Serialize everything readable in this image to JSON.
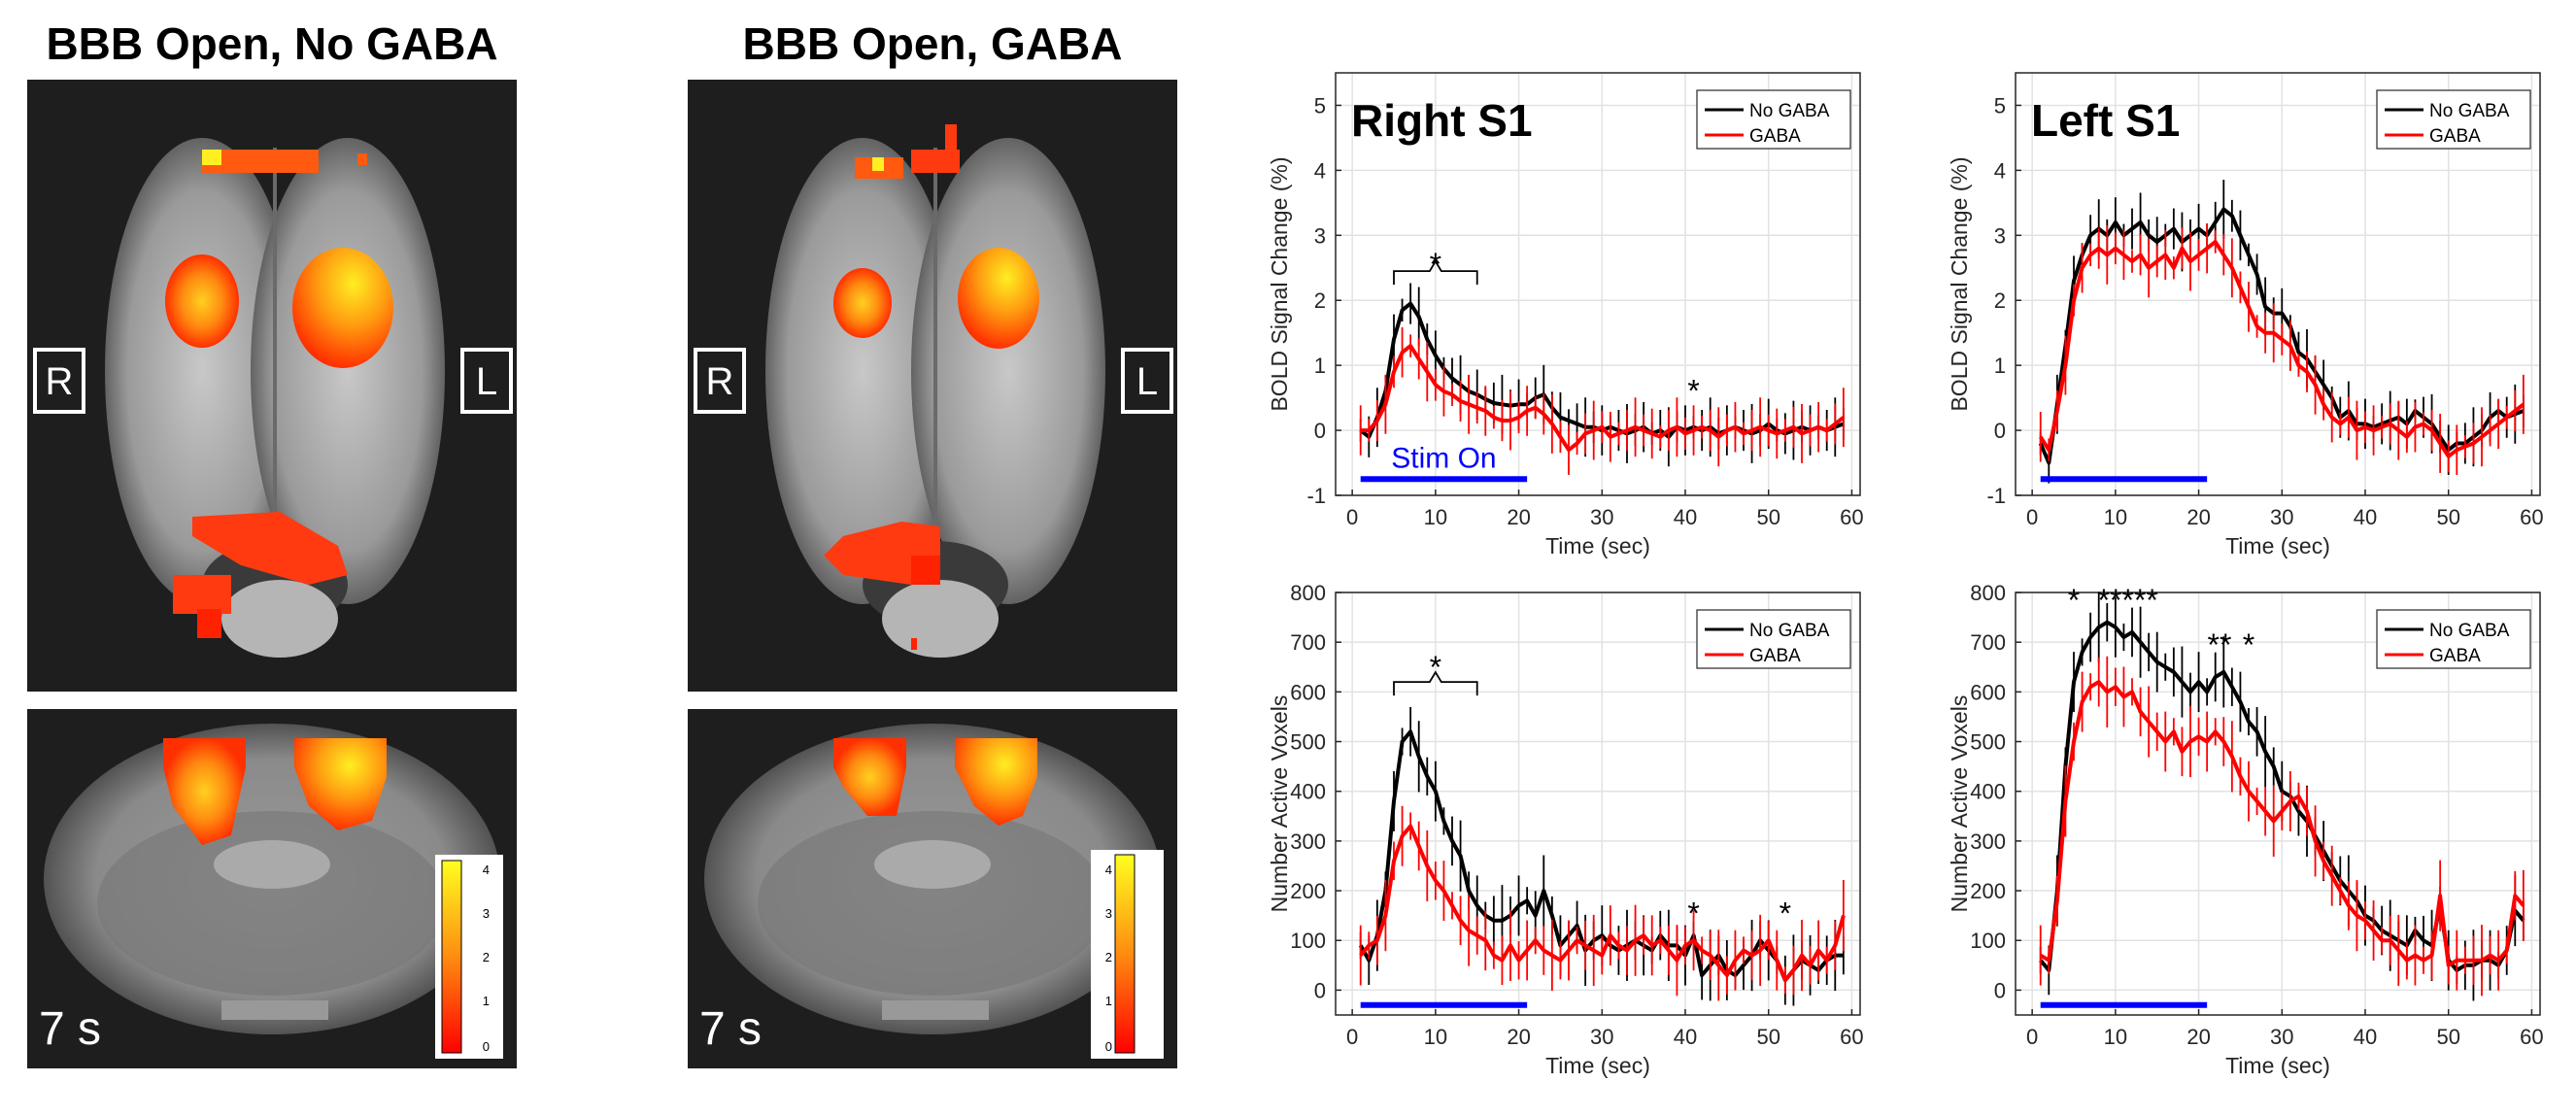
{
  "panels": {
    "left_title": "BBB Open, No GABA",
    "right_title": "BBB Open, GABA",
    "side_right": "R",
    "side_left": "L",
    "time_label": "7 s",
    "colorbar_ticks": [
      "4",
      "3",
      "2",
      "1",
      "0"
    ]
  },
  "colors": {
    "no_gaba": "#000000",
    "gaba": "#ff0000",
    "stim_bar": "#0000ff",
    "heat_hot": "#ffee22",
    "heat_mid": "#ff7a10",
    "heat_low": "#ff2200"
  },
  "chart_data": [
    {
      "type": "line",
      "id": "bold_right",
      "panel_label": "Right S1",
      "xlabel": "Time (sec)",
      "ylabel": "BOLD Signal Change (%)",
      "xlim": [
        -2,
        61
      ],
      "ylim": [
        -1,
        5.5
      ],
      "xticks": [
        0,
        10,
        20,
        30,
        40,
        50,
        60
      ],
      "yticks": [
        -1,
        0,
        1,
        2,
        3,
        4,
        5
      ],
      "tick_labels_x": [
        "0",
        "10",
        "20",
        "30",
        "40",
        "50",
        "60"
      ],
      "tick_labels_y": [
        "-1",
        "0",
        "1",
        "2",
        "3",
        "4",
        "5"
      ],
      "legend": [
        "No GABA",
        "GABA"
      ],
      "stim_label": "Stim On",
      "stim": [
        1,
        21
      ],
      "stim_y": -0.75,
      "annotations": [
        {
          "text": "*",
          "x": 10,
          "y": 2.6,
          "bracket": [
            5,
            15,
            2.45
          ]
        },
        {
          "text": "*",
          "x": 41,
          "y": 0.65
        }
      ],
      "x": [
        1,
        2,
        3,
        4,
        5,
        6,
        7,
        8,
        9,
        10,
        11,
        12,
        13,
        14,
        15,
        16,
        17,
        18,
        19,
        20,
        21,
        22,
        23,
        24,
        25,
        26,
        27,
        28,
        29,
        30,
        31,
        32,
        33,
        34,
        35,
        36,
        37,
        38,
        39,
        40,
        41,
        42,
        43,
        44,
        45,
        46,
        47,
        48,
        49,
        50,
        51,
        52,
        53,
        54,
        55,
        56,
        57,
        58,
        59
      ],
      "series": [
        {
          "name": "No GABA",
          "values": [
            0,
            -0.1,
            0.2,
            0.6,
            1.4,
            1.85,
            1.95,
            1.75,
            1.4,
            1.15,
            0.95,
            0.8,
            0.7,
            0.6,
            0.55,
            0.48,
            0.42,
            0.4,
            0.38,
            0.4,
            0.4,
            0.5,
            0.55,
            0.35,
            0.2,
            0.15,
            0.1,
            0.05,
            0.05,
            0.0,
            0.05,
            0.0,
            -0.05,
            0.0,
            0.05,
            -0.05,
            0.0,
            -0.1,
            0.05,
            0.0,
            0.05,
            0.0,
            0.05,
            -0.05,
            0.0,
            0.05,
            0.0,
            -0.05,
            0.0,
            0.1,
            0.0,
            -0.05,
            0.0,
            0.05,
            0.0,
            0.05,
            0.0,
            0.05,
            0.1
          ]
        },
        {
          "name": "GABA",
          "values": [
            0,
            0.0,
            0.15,
            0.4,
            0.9,
            1.2,
            1.3,
            1.1,
            0.9,
            0.7,
            0.6,
            0.55,
            0.45,
            0.4,
            0.35,
            0.3,
            0.2,
            0.15,
            0.15,
            0.2,
            0.3,
            0.35,
            0.25,
            0.1,
            -0.1,
            -0.3,
            -0.2,
            -0.05,
            0.0,
            0.05,
            -0.1,
            -0.05,
            0.0,
            0.05,
            0.0,
            -0.05,
            -0.1,
            0.0,
            0.05,
            -0.05,
            0.0,
            0.05,
            0.0,
            -0.1,
            0.0,
            0.05,
            -0.05,
            0.0,
            0.05,
            0.0,
            -0.05,
            0.0,
            0.05,
            -0.05,
            0.0,
            0.05,
            0.0,
            0.1,
            0.2
          ]
        }
      ]
    },
    {
      "type": "line",
      "id": "bold_left",
      "panel_label": "Left S1",
      "xlabel": "Time (sec)",
      "ylabel": "BOLD Signal Change (%)",
      "xlim": [
        -2,
        61
      ],
      "ylim": [
        -1,
        5.5
      ],
      "xticks": [
        0,
        10,
        20,
        30,
        40,
        50,
        60
      ],
      "yticks": [
        -1,
        0,
        1,
        2,
        3,
        4,
        5
      ],
      "tick_labels_x": [
        "0",
        "10",
        "20",
        "30",
        "40",
        "50",
        "60"
      ],
      "tick_labels_y": [
        "-1",
        "0",
        "1",
        "2",
        "3",
        "4",
        "5"
      ],
      "legend": [
        "No GABA",
        "GABA"
      ],
      "stim_label": "",
      "stim": [
        1,
        21
      ],
      "stim_y": -0.75,
      "annotations": [],
      "x": [
        1,
        2,
        3,
        4,
        5,
        6,
        7,
        8,
        9,
        10,
        11,
        12,
        13,
        14,
        15,
        16,
        17,
        18,
        19,
        20,
        21,
        22,
        23,
        24,
        25,
        26,
        27,
        28,
        29,
        30,
        31,
        32,
        33,
        34,
        35,
        36,
        37,
        38,
        39,
        40,
        41,
        42,
        43,
        44,
        45,
        46,
        47,
        48,
        49,
        50,
        51,
        52,
        53,
        54,
        55,
        56,
        57,
        58,
        59
      ],
      "series": [
        {
          "name": "No GABA",
          "values": [
            -0.2,
            -0.5,
            0.4,
            1.3,
            2.3,
            2.7,
            3.0,
            3.1,
            3.0,
            3.2,
            3.0,
            3.1,
            3.2,
            3.0,
            2.9,
            3.0,
            3.1,
            2.9,
            3.0,
            3.1,
            3.0,
            3.2,
            3.4,
            3.3,
            3.0,
            2.7,
            2.4,
            1.9,
            1.8,
            1.8,
            1.6,
            1.2,
            1.1,
            0.9,
            0.7,
            0.5,
            0.2,
            0.3,
            0.1,
            0.1,
            0.05,
            0.1,
            0.15,
            0.2,
            0.1,
            0.3,
            0.2,
            0.1,
            -0.1,
            -0.3,
            -0.2,
            -0.2,
            -0.1,
            0.0,
            0.2,
            0.3,
            0.2,
            0.25,
            0.3
          ]
        },
        {
          "name": "GABA",
          "values": [
            -0.1,
            -0.3,
            0.3,
            1.0,
            2.0,
            2.5,
            2.7,
            2.8,
            2.7,
            2.8,
            2.7,
            2.6,
            2.7,
            2.5,
            2.6,
            2.7,
            2.5,
            2.8,
            2.6,
            2.7,
            2.8,
            2.9,
            2.7,
            2.5,
            2.2,
            1.9,
            1.6,
            1.5,
            1.5,
            1.4,
            1.3,
            1.0,
            0.9,
            0.7,
            0.4,
            0.2,
            0.1,
            0.2,
            0.0,
            0.05,
            0.0,
            0.05,
            0.1,
            0.0,
            -0.1,
            0.05,
            0.1,
            0.0,
            -0.2,
            -0.4,
            -0.3,
            -0.25,
            -0.2,
            -0.1,
            0.0,
            0.1,
            0.2,
            0.3,
            0.4
          ]
        }
      ]
    },
    {
      "type": "line",
      "id": "voxels_right",
      "panel_label": "",
      "xlabel": "Time (sec)",
      "ylabel": "Number Active Voxels",
      "xlim": [
        -2,
        61
      ],
      "ylim": [
        -50,
        800
      ],
      "xticks": [
        0,
        10,
        20,
        30,
        40,
        50,
        60
      ],
      "yticks": [
        0,
        100,
        200,
        300,
        400,
        500,
        600,
        700,
        800
      ],
      "tick_labels_x": [
        "0",
        "10",
        "20",
        "30",
        "40",
        "50",
        "60"
      ],
      "tick_labels_y": [
        "0",
        "100",
        "200",
        "300",
        "400",
        "500",
        "600",
        "700",
        "800"
      ],
      "legend": [
        "No GABA",
        "GABA"
      ],
      "stim_label": "",
      "stim": [
        1,
        21
      ],
      "stim_y": -30,
      "annotations": [
        {
          "text": "*",
          "x": 10,
          "y": 655,
          "bracket": [
            5,
            15,
            620
          ]
        },
        {
          "text": "*",
          "x": 41,
          "y": 160
        },
        {
          "text": "*",
          "x": 52,
          "y": 160
        }
      ],
      "x": [
        1,
        2,
        3,
        4,
        5,
        6,
        7,
        8,
        9,
        10,
        11,
        12,
        13,
        14,
        15,
        16,
        17,
        18,
        19,
        20,
        21,
        22,
        23,
        24,
        25,
        26,
        27,
        28,
        29,
        30,
        31,
        32,
        33,
        34,
        35,
        36,
        37,
        38,
        39,
        40,
        41,
        42,
        43,
        44,
        45,
        46,
        47,
        48,
        49,
        50,
        51,
        52,
        53,
        54,
        55,
        56,
        57,
        58,
        59
      ],
      "series": [
        {
          "name": "No GABA",
          "values": [
            90,
            60,
            110,
            200,
            380,
            500,
            520,
            470,
            430,
            400,
            340,
            300,
            270,
            200,
            170,
            150,
            140,
            140,
            150,
            170,
            180,
            150,
            200,
            150,
            90,
            110,
            130,
            80,
            100,
            110,
            90,
            80,
            90,
            100,
            90,
            80,
            110,
            90,
            90,
            70,
            110,
            30,
            50,
            70,
            40,
            30,
            50,
            70,
            100,
            80,
            60,
            20,
            40,
            60,
            50,
            40,
            60,
            70,
            70
          ]
        },
        {
          "name": "GABA",
          "values": [
            70,
            90,
            100,
            150,
            260,
            310,
            330,
            290,
            250,
            220,
            200,
            170,
            140,
            120,
            110,
            100,
            70,
            60,
            90,
            60,
            80,
            100,
            80,
            70,
            60,
            80,
            100,
            90,
            80,
            70,
            110,
            90,
            80,
            100,
            110,
            90,
            100,
            80,
            60,
            90,
            100,
            80,
            70,
            50,
            30,
            60,
            80,
            70,
            80,
            100,
            60,
            20,
            40,
            70,
            50,
            80,
            60,
            90,
            150
          ]
        }
      ]
    },
    {
      "type": "line",
      "id": "voxels_left",
      "panel_label": "",
      "xlabel": "Time (sec)",
      "ylabel": "Number Active Voxels",
      "xlim": [
        -2,
        61
      ],
      "ylim": [
        -50,
        800
      ],
      "xticks": [
        0,
        10,
        20,
        30,
        40,
        50,
        60
      ],
      "yticks": [
        0,
        100,
        200,
        300,
        400,
        500,
        600,
        700,
        800
      ],
      "tick_labels_x": [
        "0",
        "10",
        "20",
        "30",
        "40",
        "50",
        "60"
      ],
      "tick_labels_y": [
        "0",
        "100",
        "200",
        "300",
        "400",
        "500",
        "600",
        "700",
        "800"
      ],
      "legend": [
        "No GABA",
        "GABA"
      ],
      "stim_label": "",
      "stim": [
        1,
        21
      ],
      "stim_y": -30,
      "annotations": [
        {
          "text": "*",
          "x": 5,
          "y": 790
        },
        {
          "text": "*****",
          "x": 11.5,
          "y": 790
        },
        {
          "text": "**",
          "x": 22.5,
          "y": 700
        },
        {
          "text": "*",
          "x": 26,
          "y": 700
        }
      ],
      "x": [
        1,
        2,
        3,
        4,
        5,
        6,
        7,
        8,
        9,
        10,
        11,
        12,
        13,
        14,
        15,
        16,
        17,
        18,
        19,
        20,
        21,
        22,
        23,
        24,
        25,
        26,
        27,
        28,
        29,
        30,
        31,
        32,
        33,
        34,
        35,
        36,
        37,
        38,
        39,
        40,
        41,
        42,
        43,
        44,
        45,
        46,
        47,
        48,
        49,
        50,
        51,
        52,
        53,
        54,
        55,
        56,
        57,
        58,
        59
      ],
      "series": [
        {
          "name": "No GABA",
          "values": [
            60,
            40,
            200,
            450,
            620,
            680,
            710,
            730,
            740,
            730,
            710,
            720,
            700,
            680,
            660,
            650,
            640,
            620,
            600,
            620,
            600,
            630,
            640,
            610,
            580,
            540,
            520,
            480,
            450,
            400,
            390,
            360,
            340,
            310,
            280,
            250,
            220,
            200,
            180,
            150,
            140,
            120,
            110,
            100,
            90,
            120,
            100,
            90,
            170,
            60,
            40,
            50,
            50,
            60,
            60,
            50,
            80,
            160,
            140
          ]
        },
        {
          "name": "GABA",
          "values": [
            70,
            60,
            180,
            380,
            500,
            580,
            610,
            620,
            600,
            610,
            590,
            600,
            560,
            540,
            520,
            500,
            520,
            480,
            500,
            510,
            500,
            520,
            500,
            470,
            430,
            400,
            380,
            360,
            340,
            360,
            380,
            390,
            360,
            300,
            260,
            230,
            200,
            170,
            150,
            140,
            120,
            100,
            100,
            80,
            60,
            70,
            60,
            70,
            190,
            50,
            60,
            60,
            60,
            60,
            70,
            60,
            80,
            190,
            170
          ]
        }
      ]
    }
  ]
}
